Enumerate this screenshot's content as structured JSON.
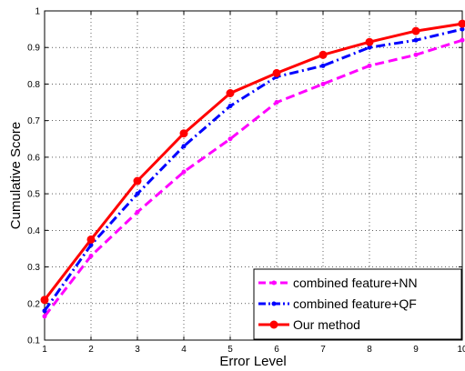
{
  "chart_data": {
    "type": "line",
    "title": "",
    "xlabel": "Error Level",
    "ylabel": "Cumulative Score",
    "xlim": [
      1,
      10
    ],
    "ylim": [
      0.1,
      1
    ],
    "xticks": [
      "1",
      "2",
      "3",
      "4",
      "5",
      "6",
      "7",
      "8",
      "9",
      "10"
    ],
    "yticks": [
      "0.1",
      "0.2",
      "0.3",
      "0.4",
      "0.5",
      "0.6",
      "0.7",
      "0.8",
      "0.9",
      "1"
    ],
    "grid": true,
    "legend_position": "bottom-right",
    "x": [
      1,
      2,
      3,
      4,
      5,
      6,
      7,
      8,
      9,
      10
    ],
    "series": [
      {
        "name": "combined feature+NN",
        "color": "#ff00ff",
        "line_style": "dashed",
        "marker": "point",
        "values": [
          0.165,
          0.33,
          0.45,
          0.56,
          0.65,
          0.75,
          0.8,
          0.85,
          0.88,
          0.92
        ]
      },
      {
        "name": "combined feature+QF",
        "color": "#0000ff",
        "line_style": "dash-dot",
        "marker": "point",
        "values": [
          0.18,
          0.36,
          0.5,
          0.63,
          0.74,
          0.82,
          0.85,
          0.9,
          0.92,
          0.95
        ]
      },
      {
        "name": "Our method",
        "color": "#ff0000",
        "line_style": "solid",
        "marker": "circle",
        "values": [
          0.21,
          0.375,
          0.535,
          0.665,
          0.775,
          0.83,
          0.88,
          0.915,
          0.945,
          0.965
        ]
      }
    ]
  }
}
